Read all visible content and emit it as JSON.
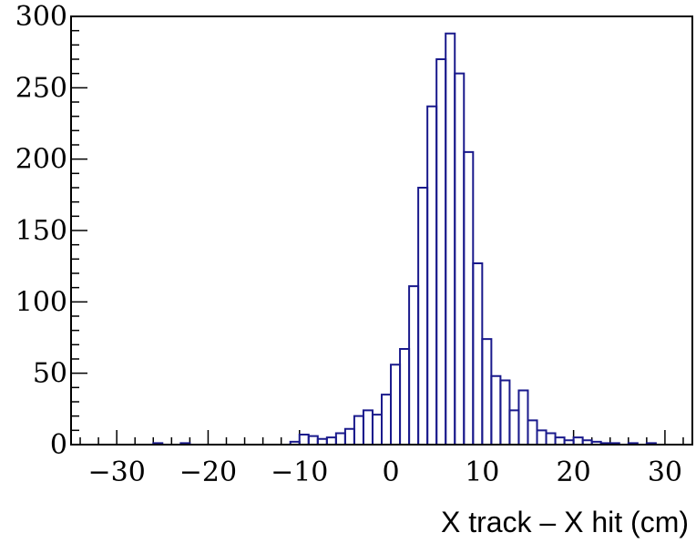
{
  "chart_data": {
    "type": "bar",
    "title": "",
    "xlabel": "X track – X hit  (cm)",
    "ylabel": "",
    "xlim": [
      -35,
      33
    ],
    "ylim": [
      0,
      300
    ],
    "grid": false,
    "histogram": true,
    "x_ticks": [
      -30,
      -20,
      -10,
      0,
      10,
      20,
      30
    ],
    "x_tick_labels": [
      "−30",
      "−20",
      "−10",
      "0",
      "10",
      "20",
      "30"
    ],
    "y_ticks": [
      0,
      50,
      100,
      150,
      200,
      250,
      300
    ],
    "y_tick_labels": [
      "0",
      "50",
      "100",
      "150",
      "200",
      "250",
      "300"
    ],
    "bins": [
      {
        "x_low": -26,
        "x_high": -25,
        "value": 1
      },
      {
        "x_low": -25,
        "x_high": -24,
        "value": 0
      },
      {
        "x_low": -24,
        "x_high": -23,
        "value": 0
      },
      {
        "x_low": -23,
        "x_high": -22,
        "value": 1
      },
      {
        "x_low": -22,
        "x_high": -21,
        "value": 0
      },
      {
        "x_low": -11,
        "x_high": -10,
        "value": 2
      },
      {
        "x_low": -10,
        "x_high": -9,
        "value": 7
      },
      {
        "x_low": -9,
        "x_high": -8,
        "value": 6
      },
      {
        "x_low": -8,
        "x_high": -7,
        "value": 4
      },
      {
        "x_low": -7,
        "x_high": -6,
        "value": 5
      },
      {
        "x_low": -6,
        "x_high": -5,
        "value": 8
      },
      {
        "x_low": -5,
        "x_high": -4,
        "value": 11
      },
      {
        "x_low": -4,
        "x_high": -3,
        "value": 20
      },
      {
        "x_low": -3,
        "x_high": -2,
        "value": 24
      },
      {
        "x_low": -2,
        "x_high": -1,
        "value": 21
      },
      {
        "x_low": -1,
        "x_high": 0,
        "value": 35
      },
      {
        "x_low": 0,
        "x_high": 1,
        "value": 56
      },
      {
        "x_low": 1,
        "x_high": 2,
        "value": 67
      },
      {
        "x_low": 2,
        "x_high": 3,
        "value": 111
      },
      {
        "x_low": 3,
        "x_high": 4,
        "value": 180
      },
      {
        "x_low": 4,
        "x_high": 5,
        "value": 237
      },
      {
        "x_low": 5,
        "x_high": 6,
        "value": 270
      },
      {
        "x_low": 6,
        "x_high": 7,
        "value": 288
      },
      {
        "x_low": 7,
        "x_high": 8,
        "value": 260
      },
      {
        "x_low": 8,
        "x_high": 9,
        "value": 205
      },
      {
        "x_low": 9,
        "x_high": 10,
        "value": 127
      },
      {
        "x_low": 10,
        "x_high": 11,
        "value": 74
      },
      {
        "x_low": 11,
        "x_high": 12,
        "value": 48
      },
      {
        "x_low": 12,
        "x_high": 13,
        "value": 45
      },
      {
        "x_low": 13,
        "x_high": 14,
        "value": 24
      },
      {
        "x_low": 14,
        "x_high": 15,
        "value": 38
      },
      {
        "x_low": 15,
        "x_high": 16,
        "value": 17
      },
      {
        "x_low": 16,
        "x_high": 17,
        "value": 10
      },
      {
        "x_low": 17,
        "x_high": 18,
        "value": 8
      },
      {
        "x_low": 18,
        "x_high": 19,
        "value": 5
      },
      {
        "x_low": 19,
        "x_high": 20,
        "value": 3
      },
      {
        "x_low": 20,
        "x_high": 21,
        "value": 5
      },
      {
        "x_low": 21,
        "x_high": 22,
        "value": 3
      },
      {
        "x_low": 22,
        "x_high": 23,
        "value": 2
      },
      {
        "x_low": 23,
        "x_high": 24,
        "value": 1
      },
      {
        "x_low": 24,
        "x_high": 25,
        "value": 1
      },
      {
        "x_low": 25,
        "x_high": 26,
        "value": 0
      },
      {
        "x_low": 26,
        "x_high": 27,
        "value": 1
      },
      {
        "x_low": 27,
        "x_high": 28,
        "value": 0
      },
      {
        "x_low": 28,
        "x_high": 29,
        "value": 1
      },
      {
        "x_low": 29,
        "x_high": 30,
        "value": 0
      }
    ],
    "line_color": "#1a1a8c"
  }
}
